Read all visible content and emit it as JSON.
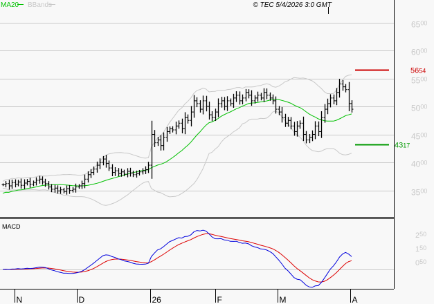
{
  "chart_data": {
    "type": "ohlc-bar",
    "header": {
      "legend": [
        {
          "name": "MA20",
          "color": "#00c000"
        },
        {
          "name": "BBands",
          "color": "#c8c8c8"
        }
      ],
      "copyright": "© TEC 5/4/2026 3:0 GMT"
    },
    "price_axis": {
      "ylim": [
        3150,
        6650
      ],
      "ticks": [
        {
          "value": 6500,
          "big": "65",
          "small": "00"
        },
        {
          "value": 6000,
          "big": "60",
          "small": "00"
        },
        {
          "value": 5500,
          "big": "55",
          "small": "00"
        },
        {
          "value": 5000,
          "big": "50",
          "small": "00"
        },
        {
          "value": 4500,
          "big": "45",
          "small": "00"
        },
        {
          "value": 4000,
          "big": "40",
          "small": "00"
        },
        {
          "value": 3500,
          "big": "35",
          "small": "00"
        }
      ]
    },
    "levels": [
      {
        "value": 5654,
        "big": "56",
        "small": "54",
        "color": "#cc0000"
      },
      {
        "value": 4317,
        "big": "43",
        "small": "17",
        "color": "#009900"
      }
    ],
    "x_ticks": [
      "N",
      "D",
      "26",
      "F",
      "M",
      "A"
    ],
    "closes": [
      3600,
      3620,
      3580,
      3640,
      3610,
      3650,
      3590,
      3630,
      3660,
      3610,
      3640,
      3680,
      3700,
      3650,
      3620,
      3560,
      3520,
      3540,
      3490,
      3510,
      3480,
      3530,
      3500,
      3520,
      3560,
      3580,
      3620,
      3700,
      3780,
      3820,
      3880,
      3950,
      4000,
      4060,
      3980,
      3900,
      3820,
      3850,
      3800,
      3830,
      3790,
      3840,
      3810,
      3780,
      3800,
      3830,
      3850,
      3870,
      3950,
      4500,
      4350,
      4400,
      4300,
      4450,
      4550,
      4600,
      4580,
      4650,
      4700,
      4600,
      4800,
      4750,
      4900,
      5100,
      5050,
      4950,
      5100,
      5000,
      4850,
      4800,
      4900,
      5050,
      5100,
      5000,
      5100,
      5050,
      5150,
      5200,
      5100,
      5150,
      5250,
      5200,
      5100,
      5150,
      5200,
      5150,
      5250,
      5200,
      5150,
      5100,
      4950,
      4900,
      4800,
      4700,
      4750,
      4650,
      4550,
      4650,
      4700,
      4500,
      4400,
      4450,
      4500,
      4650,
      4550,
      4800,
      4950,
      5050,
      5150,
      5100,
      5250,
      5400,
      5350,
      5300,
      5050,
      4950
    ],
    "macd": {
      "label": "MACD",
      "ticks": [
        {
          "value": 250,
          "big": "2",
          "small": "50"
        },
        {
          "value": 150,
          "big": "1",
          "small": "50"
        },
        {
          "value": 50,
          "big": "0",
          "small": "50"
        }
      ],
      "macd_color": "#0000dd",
      "signal_color": "#dd0000"
    }
  }
}
